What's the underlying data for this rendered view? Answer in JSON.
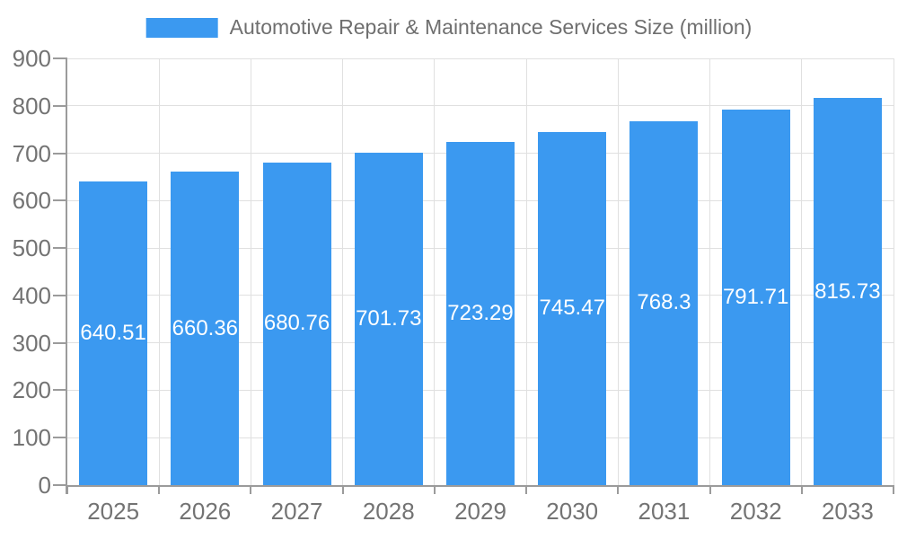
{
  "chart_data": {
    "type": "bar",
    "title": "Automotive Repair & Maintenance Services Size (million)",
    "categories": [
      "2025",
      "2026",
      "2027",
      "2028",
      "2029",
      "2030",
      "2031",
      "2032",
      "2033"
    ],
    "values": [
      640.51,
      660.36,
      680.76,
      701.73,
      723.29,
      745.47,
      768.3,
      791.71,
      815.73
    ],
    "xlabel": "",
    "ylabel": "",
    "ylim": [
      0,
      900
    ],
    "ytick_step": 100,
    "yticks": [
      0,
      100,
      200,
      300,
      400,
      500,
      600,
      700,
      800,
      900
    ],
    "grid": true,
    "legend_position": "top-center",
    "value_labels_inside_bars": true
  },
  "colors": {
    "bar": "#3b99f0",
    "grid": "#e0e0e0",
    "axis": "#9b9b9b",
    "text": "#737373",
    "legend_text": "#6f6f6f",
    "value_label": "#ffffff",
    "background": "#ffffff"
  }
}
